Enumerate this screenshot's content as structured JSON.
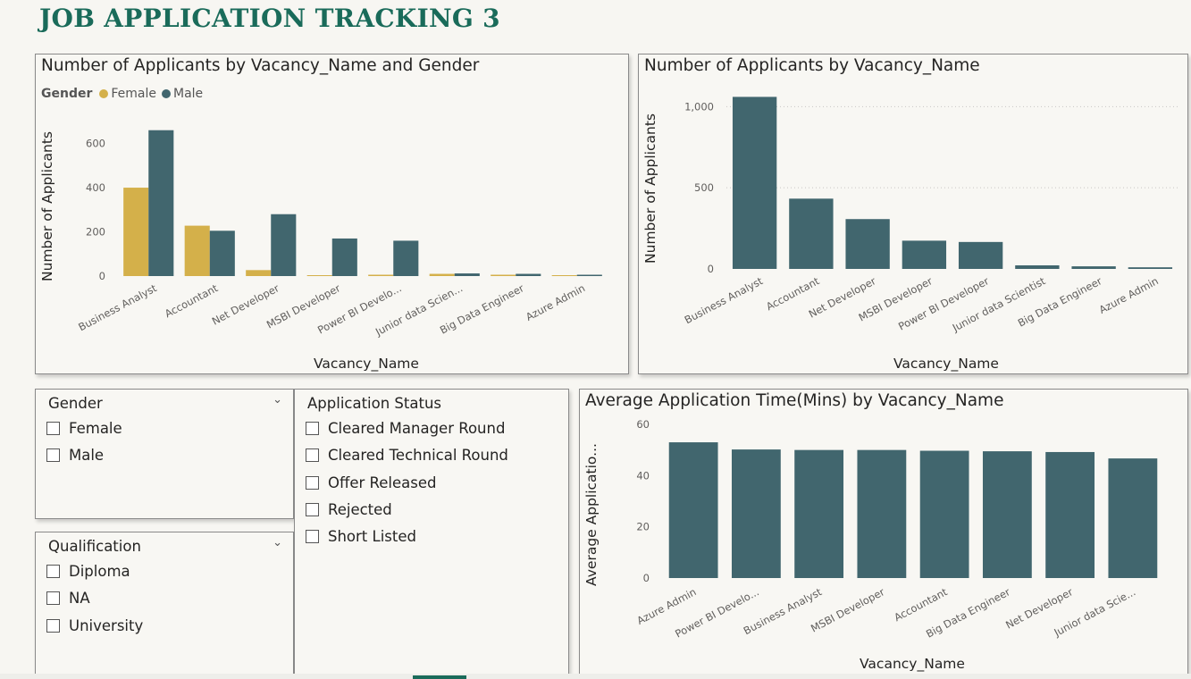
{
  "page_title": "JOB APPLICATION TRACKING 3",
  "colors": {
    "female": "#d4b04a",
    "male": "#41666e",
    "title": "#1a6b5a"
  },
  "chart1": {
    "title": "Number of Applicants by Vacancy_Name and Gender",
    "legend_title": "Gender",
    "xlabel": "Vacancy_Name",
    "ylabel": "Number of Applicants",
    "yticks": [
      "0",
      "200",
      "400",
      "600"
    ]
  },
  "chart2": {
    "title": "Number of Applicants by Vacancy_Name",
    "xlabel": "Vacancy_Name",
    "ylabel": "Number of Applicants",
    "yticks": [
      "0",
      "500",
      "1,000"
    ]
  },
  "chart3": {
    "title": "Average Application Time(Mins) by Vacancy_Name",
    "xlabel": "Vacancy_Name",
    "ylabel": "Average Applicatio...",
    "yticks": [
      "0",
      "20",
      "40",
      "60"
    ]
  },
  "chart_data": [
    {
      "type": "bar",
      "title": "Number of Applicants by Vacancy_Name and Gender",
      "xlabel": "Vacancy_Name",
      "ylabel": "Number of Applicants",
      "categories": [
        "Business Analyst",
        "Accountant",
        "Net Developer",
        "MSBI Developer",
        "Power BI Develo...",
        "Junior data Scien...",
        "Big Data Engineer",
        "Azure Admin"
      ],
      "series": [
        {
          "name": "Female",
          "values": [
            400,
            228,
            27,
            4,
            6,
            10,
            6,
            4
          ]
        },
        {
          "name": "Male",
          "values": [
            660,
            205,
            280,
            170,
            160,
            12,
            10,
            6
          ]
        }
      ],
      "ylim": [
        0,
        760
      ],
      "legend": "top-left",
      "grid": false
    },
    {
      "type": "bar",
      "title": "Number of Applicants by Vacancy_Name",
      "xlabel": "Vacancy_Name",
      "ylabel": "Number of Applicants",
      "categories": [
        "Business Analyst",
        "Accountant",
        "Net Developer",
        "MSBI Developer",
        "Power BI Developer",
        "Junior data Scientist",
        "Big Data Engineer",
        "Azure Admin"
      ],
      "values": [
        1060,
        433,
        307,
        174,
        166,
        22,
        16,
        10
      ],
      "ylim": [
        0,
        1200
      ],
      "grid": true
    },
    {
      "type": "bar",
      "title": "Average Application Time(Mins) by Vacancy_Name",
      "xlabel": "Vacancy_Name",
      "ylabel": "Average Applicatio...",
      "categories": [
        "Azure Admin",
        "Power BI Develo...",
        "Business Analyst",
        "MSBI Developer",
        "Accountant",
        "Big Data Engineer",
        "Net Developer",
        "Junior data Scie..."
      ],
      "values": [
        53,
        50.2,
        50,
        50,
        49.7,
        49.5,
        49.2,
        46.7
      ],
      "ylim": [
        0,
        60
      ],
      "grid": false
    }
  ],
  "slicers": {
    "gender": {
      "title": "Gender",
      "options": [
        "Female",
        "Male"
      ]
    },
    "qualification": {
      "title": "Qualification",
      "options": [
        "Diploma",
        "NA",
        "University"
      ]
    },
    "status": {
      "title": "Application Status",
      "options": [
        "Cleared Manager Round",
        "Cleared Technical Round",
        "Offer Released",
        "Rejected",
        "Short Listed"
      ]
    }
  }
}
